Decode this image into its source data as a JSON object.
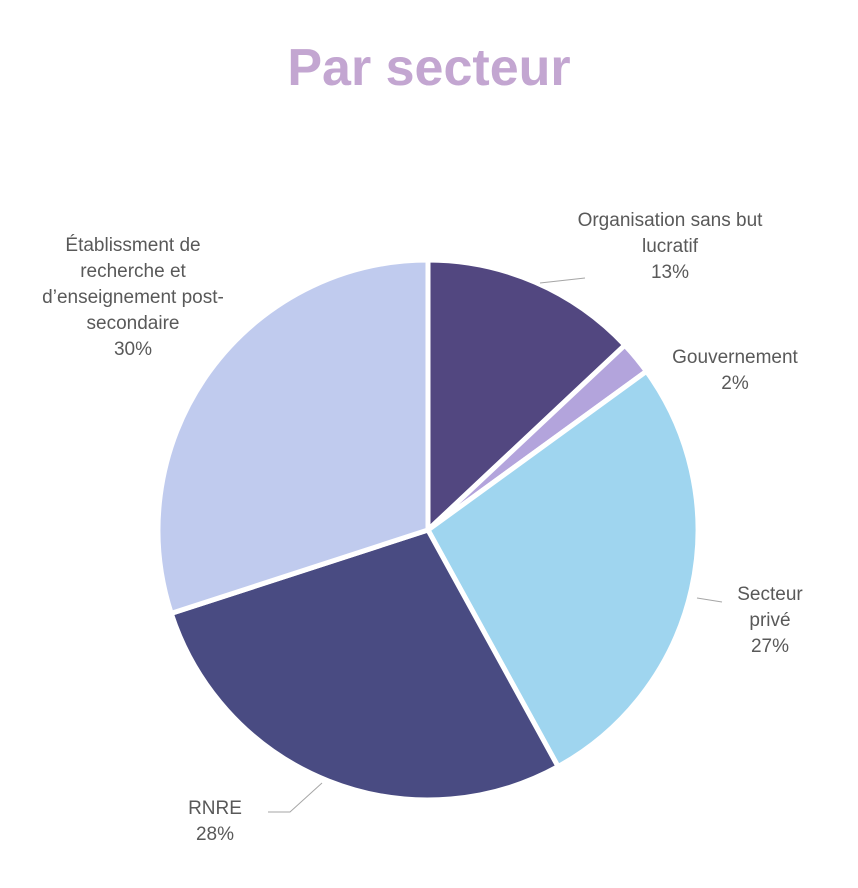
{
  "chart_data": {
    "type": "pie",
    "title": "Par secteur",
    "categories": [
      "Organisation sans but lucratif",
      "Gouvernement",
      "Secteur privé",
      "RNRE",
      "Établissment de recherche et d’enseignement post-secondaire"
    ],
    "values": [
      13,
      2,
      27,
      28,
      30
    ],
    "value_labels": [
      "13%",
      "2%",
      "27%",
      "28%",
      "30%"
    ],
    "colors": [
      "#524780",
      "#b3a4dc",
      "#9fd5ef",
      "#494b82",
      "#c0cbee"
    ],
    "start": "12 o'clock, clockwise",
    "legend": "none (data labels beside slices)"
  }
}
